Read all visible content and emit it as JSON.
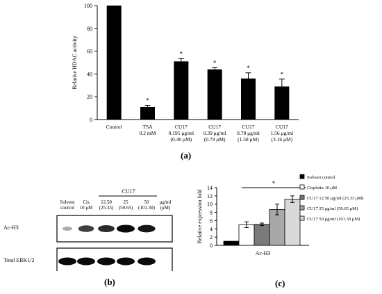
{
  "panel_labels": {
    "a": "(a)",
    "b": "(b)",
    "c": "(c)"
  },
  "chart_data": [
    {
      "type": "bar",
      "panel": "a",
      "ylabel": "Relative HDAC activity",
      "ylim": [
        0,
        100
      ],
      "yticks": [
        "0",
        "20",
        "40",
        "60",
        "80",
        "100"
      ],
      "yticks_num": [
        0,
        20,
        40,
        60,
        80,
        100
      ],
      "categories": [
        [
          "Control"
        ],
        [
          "TSA",
          "0.2 mM"
        ],
        [
          "CU17",
          "0.195 μg/ml",
          "(0.40 μM)"
        ],
        [
          "CU17",
          "0.39 μg/ml",
          "(0.79 μM)"
        ],
        [
          "CU17",
          "0.78 μg/ml",
          "(1.58 μM)"
        ],
        [
          "CU17",
          "1.56 μg/ml",
          "(3.16 μM)"
        ]
      ],
      "values": [
        100,
        11,
        51,
        44,
        36,
        29
      ],
      "errors": [
        0,
        1.5,
        2.5,
        1.5,
        5,
        6.5
      ],
      "significance": [
        "",
        "*",
        "*",
        "*",
        "*",
        "*"
      ],
      "bar_color": "#000000"
    },
    {
      "type": "bar",
      "panel": "c",
      "ylabel": "Relative expression fold",
      "xlabel": "Ac-H3",
      "ylim": [
        0,
        14
      ],
      "yticks": [
        "0",
        "2",
        "4",
        "6",
        "8",
        "10",
        "12",
        "14"
      ],
      "yticks_num": [
        0,
        2,
        4,
        6,
        8,
        10,
        12,
        14
      ],
      "series": [
        {
          "name": "Solvent control",
          "value": 1.0,
          "error": 0,
          "color": "#000000"
        },
        {
          "name": "Cisplatin 10 μM",
          "value": 5.0,
          "error": 0.7,
          "color": "#ffffff"
        },
        {
          "name": "CU17 12.50 μg/ml (25.33 μM)",
          "value": 5.1,
          "error": 0.3,
          "color": "#7a7a7a"
        },
        {
          "name": "CU17 25 μg/ml (50.65 μM)",
          "value": 8.7,
          "error": 1.3,
          "color": "#a8a8a8"
        },
        {
          "name": "CU17 50 μg/ml (101.30 μM)",
          "value": 11.2,
          "error": 0.8,
          "color": "#d9d9d9"
        }
      ],
      "significance": "*"
    }
  ],
  "western_blot": {
    "group_label": "CU17",
    "lane_labels": [
      [
        "Solvent",
        "control"
      ],
      [
        "Cis",
        "10 μM"
      ],
      [
        "12.50",
        "(25.33)"
      ],
      [
        "25",
        "(50.65)"
      ],
      [
        "50",
        "(101.30)"
      ]
    ],
    "unit_label": [
      "μg/ml",
      "(μM)"
    ],
    "rows": [
      {
        "label": "Ac-H3",
        "intensities": [
          0.15,
          0.75,
          0.85,
          1.0,
          0.95
        ]
      },
      {
        "label": "Total ERK1/2",
        "intensities": [
          1,
          1,
          1,
          1,
          1
        ]
      }
    ]
  }
}
